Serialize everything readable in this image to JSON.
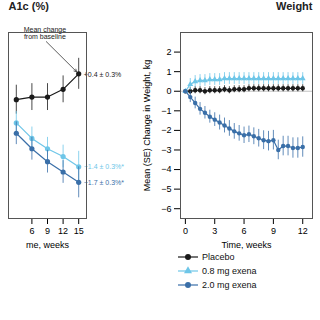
{
  "chart_data": [
    {
      "type": "line",
      "title": "A1c (%)",
      "xlabel": "me, weeks",
      "x": [
        3,
        6,
        9,
        12,
        15
      ],
      "xlim": [
        1.5,
        16.5
      ],
      "xticks": [
        6,
        9,
        12,
        15
      ],
      "ylim": [
        -2.4,
        1.2
      ],
      "tick_labels": "x",
      "series": [
        {
          "name": "Placebo",
          "color": "#1a1a1a",
          "marker": "circle",
          "values": [
            -0.1,
            -0.05,
            -0.05,
            0.1,
            0.4
          ],
          "errors": [
            0.28,
            0.26,
            0.26,
            0.26,
            0.3
          ]
        },
        {
          "name": "0.8 mg exena",
          "color": "#6ec6e8",
          "marker": "circle",
          "values": [
            -0.55,
            -0.85,
            -1.05,
            -1.2,
            -1.4
          ],
          "errors": [
            0.22,
            0.22,
            0.22,
            0.22,
            0.3
          ]
        },
        {
          "name": "2.0 mg exena",
          "color": "#3a6fa8",
          "marker": "circle",
          "values": [
            -0.75,
            -1.05,
            -1.3,
            -1.5,
            -1.7
          ],
          "errors": [
            0.22,
            0.22,
            0.22,
            0.22,
            0.3
          ]
        }
      ],
      "annotations": [
        {
          "text": "Mean change\nfrom baseline",
          "x": 8.5,
          "y": 1.05,
          "arrow_to": [
            15,
            0.4
          ]
        },
        {
          "text": "+0.4 ± 0.3%",
          "x": 15.4,
          "y": 0.38,
          "color": "#1a1a1a"
        },
        {
          "text": "−1.4 ± 0.3%*",
          "x": 15.4,
          "y": -1.4,
          "color": "#6ec6e8"
        },
        {
          "text": "−1.7 ± 0.3%*",
          "x": 15.4,
          "y": -1.7,
          "color": "#3a6fa8"
        }
      ]
    },
    {
      "type": "line",
      "title": "Weight",
      "xlabel": "Time, weeks",
      "ylabel": "Mean (SE) Change in Weight, kg",
      "x": [
        0,
        0.5,
        1,
        1.5,
        2,
        2.5,
        3,
        3.5,
        4,
        4.5,
        5,
        5.5,
        6,
        6.5,
        7,
        7.5,
        8,
        8.5,
        9,
        9.5,
        10,
        10.5,
        11,
        11.5,
        12
      ],
      "xlim": [
        -0.5,
        13
      ],
      "xticks": [
        0,
        3,
        6,
        9,
        12
      ],
      "ylim": [
        -6.5,
        3.0
      ],
      "yticks": [
        -6,
        -5,
        -4,
        -3,
        -2,
        -1,
        0,
        1,
        2
      ],
      "legend": "bottom",
      "series": [
        {
          "name": "Placebo",
          "color": "#1a1a1a",
          "marker": "circle",
          "values": [
            0.0,
            0.0,
            0.05,
            0.05,
            0.0,
            0.05,
            0.05,
            0.05,
            0.1,
            0.05,
            0.1,
            0.1,
            0.1,
            0.15,
            0.15,
            0.15,
            0.15,
            0.15,
            0.15,
            0.15,
            0.15,
            0.15,
            0.15,
            0.15,
            0.15
          ],
          "errors": [
            0.0,
            0.18,
            0.18,
            0.18,
            0.18,
            0.18,
            0.18,
            0.18,
            0.18,
            0.18,
            0.18,
            0.18,
            0.18,
            0.18,
            0.18,
            0.18,
            0.18,
            0.18,
            0.18,
            0.18,
            0.18,
            0.18,
            0.18,
            0.18,
            0.18
          ]
        },
        {
          "name": "0.8 mg exena",
          "color": "#6ec6e8",
          "marker": "triangle",
          "values": [
            0.0,
            0.35,
            0.5,
            0.55,
            0.55,
            0.6,
            0.6,
            0.6,
            0.65,
            0.65,
            0.65,
            0.65,
            0.65,
            0.65,
            0.65,
            0.65,
            0.65,
            0.65,
            0.65,
            0.65,
            0.65,
            0.65,
            0.65,
            0.65,
            0.65
          ],
          "errors": [
            0.0,
            0.3,
            0.3,
            0.3,
            0.3,
            0.3,
            0.3,
            0.3,
            0.3,
            0.3,
            0.3,
            0.3,
            0.3,
            0.3,
            0.3,
            0.3,
            0.3,
            0.3,
            0.3,
            0.3,
            0.3,
            0.3,
            0.3,
            0.3,
            0.3
          ]
        },
        {
          "name": "2.0 mg exena",
          "color": "#3a6fa8",
          "marker": "circle",
          "values": [
            0.0,
            -0.3,
            -0.6,
            -0.9,
            -1.1,
            -1.3,
            -1.45,
            -1.6,
            -1.75,
            -1.9,
            -2.05,
            -2.15,
            -2.25,
            -2.2,
            -2.3,
            -2.4,
            -2.5,
            -2.55,
            -2.5,
            -3.0,
            -2.8,
            -2.8,
            -2.9,
            -2.9,
            -2.85
          ],
          "errors": [
            0.0,
            0.28,
            0.3,
            0.32,
            0.32,
            0.33,
            0.35,
            0.38,
            0.38,
            0.4,
            0.4,
            0.4,
            0.42,
            0.42,
            0.43,
            0.45,
            0.48,
            0.5,
            0.5,
            0.5,
            0.5,
            0.5,
            0.52,
            0.52,
            0.52
          ]
        }
      ],
      "annotations": [
        {
          "type": "hline",
          "y": 0
        }
      ]
    }
  ]
}
